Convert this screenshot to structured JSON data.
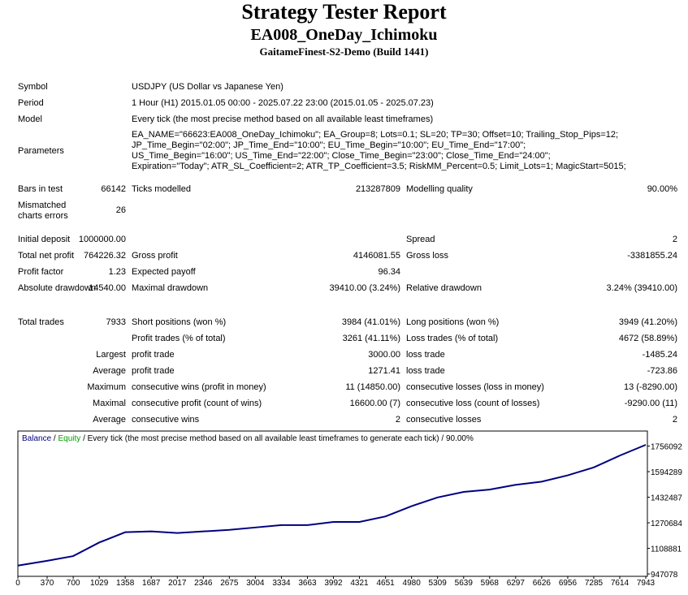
{
  "header": {
    "title": "Strategy Tester Report",
    "subtitle": "EA008_OneDay_Ichimoku",
    "server": "GaitameFinest-S2-Demo (Build 1441)"
  },
  "info": [
    {
      "label": "Symbol",
      "value": "USDJPY (US Dollar vs Japanese Yen)"
    },
    {
      "label": "Period",
      "value": "1 Hour (H1) 2015.01.05 00:00 - 2025.07.22 23:00 (2015.01.05 - 2025.07.23)"
    },
    {
      "label": "Model",
      "value": "Every tick (the most precise method based on all available least timeframes)"
    },
    {
      "label": "Parameters",
      "value": "EA_NAME=\"66623:EA008_OneDay_Ichimoku\"; EA_Group=8; Lots=0.1; SL=20; TP=30; Offset=10; Trailing_Stop_Pips=12; JP_Time_Begin=\"02:00\"; JP_Time_End=\"10:00\"; EU_Time_Begin=\"10:00\"; EU_Time_End=\"17:00\"; US_Time_Begin=\"16:00\"; US_Time_End=\"22:00\"; Close_Time_Begin=\"23:00\"; Close_Time_End=\"24:00\"; Expiration=\"Today\"; ATR_SL_Coefficient=2; ATR_TP_Coefficient=3.5; RiskMM_Percent=0.5; Limit_Lots=1; MagicStart=5015;"
    }
  ],
  "stats": [
    {
      "label": "Bars in test",
      "value": "66142",
      "label2": "Ticks modelled",
      "value2": "213287809",
      "label3": "Modelling quality",
      "value3": "90.00%"
    },
    {
      "label": "Mismatched charts errors",
      "value": "26"
    },
    {
      "label": "Initial deposit",
      "value": "1000000.00",
      "label3": "Spread",
      "value3": "2"
    },
    {
      "label": "Total net profit",
      "value": "764226.32",
      "label2": "Gross profit",
      "value2": "4146081.55",
      "label3": "Gross loss",
      "value3": "-3381855.24"
    },
    {
      "label": "Profit factor",
      "value": "1.23",
      "label2": "Expected payoff",
      "value2": "96.34"
    },
    {
      "label": "Absolute drawdown",
      "value": "14540.00",
      "label2": "Maximal drawdown",
      "value2": "39410.00 (3.24%)",
      "label3": "Relative drawdown",
      "value3": "3.24% (39410.00)"
    },
    {
      "label": "Total trades",
      "value": "7933",
      "label2": "Short positions (won %)",
      "value2": "3984 (41.01%)",
      "label3": "Long positions (won %)",
      "value3": "3949 (41.20%)"
    },
    {
      "label2": "Profit trades (% of total)",
      "value2": "3261 (41.11%)",
      "label3": "Loss trades (% of total)",
      "value3": "4672 (58.89%)"
    },
    {
      "prefix": "Largest",
      "label2": "profit trade",
      "value2": "3000.00",
      "label3": "loss trade",
      "value3": "-1485.24"
    },
    {
      "prefix": "Average",
      "label2": "profit trade",
      "value2": "1271.41",
      "label3": "loss trade",
      "value3": "-723.86"
    },
    {
      "prefix": "Maximum",
      "label2": "consecutive wins (profit in money)",
      "value2": "11 (14850.00)",
      "label3": "consecutive losses (loss in money)",
      "value3": "13 (-8290.00)"
    },
    {
      "prefix": "Maximal",
      "label2": "consecutive profit (count of wins)",
      "value2": "16600.00 (7)",
      "label3": "consecutive loss (count of losses)",
      "value3": "-9290.00 (11)"
    },
    {
      "prefix": "Average",
      "label2": "consecutive wins",
      "value2": "2",
      "label3": "consecutive losses",
      "value3": "2"
    }
  ],
  "chart_data": {
    "type": "line",
    "separator": "/",
    "equity_label": "Equity",
    "equity_color": "#00a000",
    "caption": "Every tick (the most precise method based on all available least timeframes to generate each tick)",
    "quality": "90.00%",
    "x": [
      0,
      370,
      700,
      1029,
      1358,
      1687,
      2017,
      2346,
      2675,
      3004,
      3334,
      3663,
      3992,
      4321,
      4651,
      4980,
      5309,
      5639,
      5968,
      6297,
      6626,
      6956,
      7285,
      7614,
      7943
    ],
    "series": [
      {
        "name": "Balance",
        "color": "#000080",
        "values": [
          1000000,
          1030000,
          1060000,
          1146000,
          1211000,
          1216000,
          1206000,
          1216000,
          1226000,
          1241000,
          1256000,
          1256000,
          1276000,
          1276000,
          1311000,
          1376000,
          1431000,
          1466000,
          1481000,
          1511000,
          1531000,
          1571000,
          1621000,
          1696000,
          1764000
        ]
      }
    ],
    "xlim": [
      0,
      7943
    ],
    "xticks": [
      0,
      370,
      700,
      1029,
      1358,
      1687,
      2017,
      2346,
      2675,
      3004,
      3334,
      3663,
      3992,
      4321,
      4651,
      4980,
      5309,
      5639,
      5968,
      6297,
      6626,
      6956,
      7285,
      7614,
      7943
    ],
    "ylim": [
      937000,
      1841000
    ],
    "yticks": [
      947078,
      1108881,
      1270684,
      1432487,
      1594289,
      1756092
    ],
    "grid": false
  }
}
